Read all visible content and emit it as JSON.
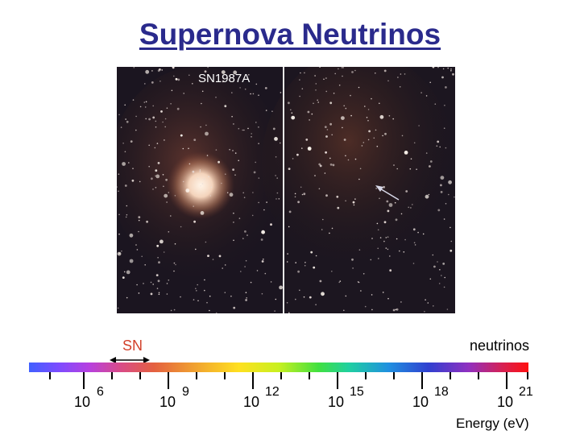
{
  "title": "Supernova Neutrinos",
  "photo": {
    "label": "SN1987A"
  },
  "spectrum": {
    "left_label": "SN",
    "right_label": "neutrinos",
    "ticks": [
      {
        "base": "10",
        "power": "6"
      },
      {
        "base": "10",
        "power": "9"
      },
      {
        "base": "10",
        "power": "12"
      },
      {
        "base": "10",
        "power": "15"
      },
      {
        "base": "10",
        "power": "18"
      },
      {
        "base": "10",
        "power": "21"
      }
    ],
    "axis_label": "Energy (eV)"
  },
  "colors": {
    "title": "#2a2a8c",
    "sn_label": "#d2402a"
  }
}
